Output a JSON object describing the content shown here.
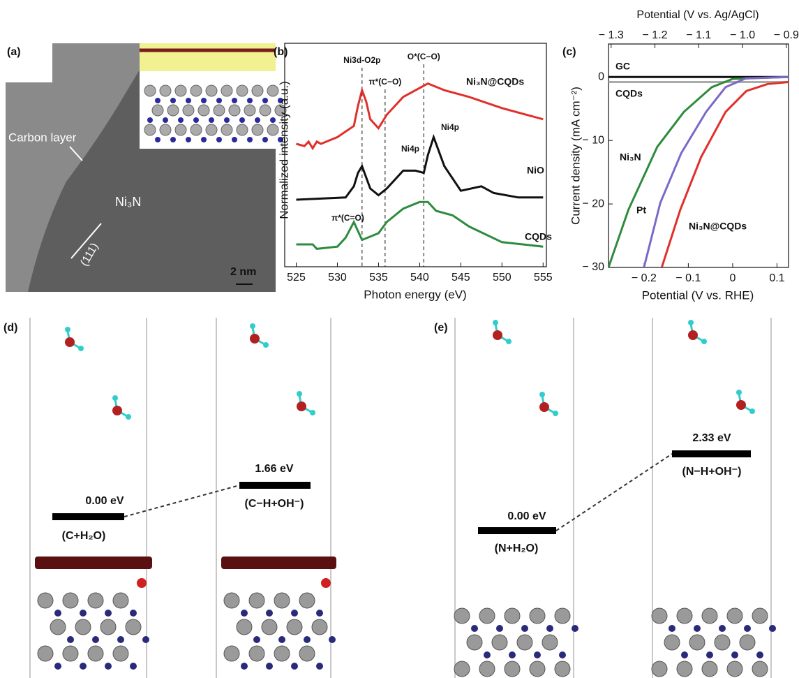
{
  "panels": {
    "a": {
      "label": "(a)",
      "carbon_layer": "Carbon layer",
      "phase": "Ni₃N",
      "plane": "(111)",
      "scale_bar": "2 nm"
    },
    "d": {
      "label": "(d)",
      "level_1": "0.00 eV",
      "state_1": "(C+H₂O)",
      "level_2": "1.66 eV",
      "state_2": "(C−H+OH⁻)"
    },
    "e": {
      "label": "(e)",
      "level_1": "0.00 eV",
      "state_1": "(N+H₂O)",
      "level_2": "2.33 eV",
      "state_2": "(N−H+OH⁻)"
    }
  },
  "chart_data": [
    {
      "type": "line",
      "label": "(b)",
      "xlabel": "Photon energy (eV)",
      "ylabel": "Normalized intensity (a.u.)",
      "xlim": [
        523.6,
        555.4
      ],
      "ylim": [
        0,
        10
      ],
      "xticks": [
        525,
        530,
        535,
        540,
        545,
        550,
        555
      ],
      "series": [
        {
          "name": "Ni₃N@CQDs",
          "color": "#e0302a",
          "x": [
            525,
            526,
            526.5,
            527,
            527.5,
            528,
            530,
            532,
            532.5,
            533,
            533.5,
            534,
            535,
            536,
            538,
            540,
            541,
            543,
            546,
            550,
            555
          ],
          "values": [
            5.5,
            5.4,
            5.6,
            5.3,
            5.6,
            5.5,
            5.8,
            6.3,
            7.2,
            7.9,
            7.4,
            6.6,
            6.2,
            6.8,
            7.6,
            8.0,
            8.2,
            7.9,
            7.6,
            7.1,
            6.6
          ]
        },
        {
          "name": "NiO",
          "color": "#111111",
          "x": [
            525,
            531,
            532,
            532.5,
            533,
            534,
            535,
            536,
            538,
            539.5,
            540.5,
            541,
            541.7,
            543,
            545,
            547.5,
            549,
            552,
            555
          ],
          "values": [
            3.0,
            3.1,
            3.6,
            4.2,
            4.5,
            3.5,
            3.2,
            3.5,
            4.3,
            4.3,
            4.2,
            5.0,
            5.8,
            4.5,
            3.4,
            3.6,
            3.3,
            3.1,
            3.1
          ]
        },
        {
          "name": "CQDs",
          "color": "#2e8b3e",
          "x": [
            525,
            527,
            527.5,
            530,
            531,
            532,
            533,
            535,
            536,
            538,
            540,
            541,
            542,
            544,
            546,
            550,
            555
          ],
          "values": [
            1.0,
            1.0,
            0.8,
            0.9,
            1.3,
            2.0,
            1.2,
            1.5,
            2.0,
            2.6,
            2.9,
            2.9,
            2.5,
            2.3,
            1.8,
            1.1,
            0.9
          ]
        }
      ],
      "annotations": [
        {
          "text": "Ni3d-O2p",
          "x": 533
        },
        {
          "text": "π*(C−O)",
          "x": 535.8
        },
        {
          "text": "O*(C−O)",
          "x": 540.5
        }
      ],
      "labels": [
        "Ni4p",
        "Ni4p",
        "π*(C=O)"
      ]
    },
    {
      "type": "line",
      "label": "(c)",
      "xlabel": "Potential (V vs. RHE)",
      "ylabel": "Current density (mA cm⁻²)",
      "x2label": "Potential (V vs. Ag/AgCl)",
      "xlim": [
        -0.28,
        0.126
      ],
      "x2lim": [
        -1.306,
        -0.895
      ],
      "ylim": [
        -30,
        5.2
      ],
      "xticks": [
        {
          "value": -0.2,
          "label": "− 0.2"
        },
        {
          "value": -0.1,
          "label": "− 0.1"
        },
        0,
        0.1
      ],
      "x2ticks": [
        {
          "value": -1.3,
          "label": "− 1.3"
        },
        {
          "value": -1.2,
          "label": "− 1.2"
        },
        {
          "value": -1.1,
          "label": "− 1.1"
        },
        {
          "value": -1.0,
          "label": "− 1.0"
        },
        {
          "value": -0.9,
          "label": "− 0.9"
        }
      ],
      "yticks": [
        {
          "value": -30,
          "label": "− 30"
        },
        {
          "value": -20,
          "label": "− 20"
        },
        {
          "value": -10,
          "label": "− 10"
        },
        0
      ],
      "series": [
        {
          "name": "GC",
          "color": "#111111",
          "x": [
            -0.28,
            0.126
          ],
          "values": [
            0,
            0
          ]
        },
        {
          "name": "CQDs",
          "color": "#aaaaaa",
          "x": [
            -0.28,
            0.126
          ],
          "values": [
            -0.8,
            -0.8
          ]
        },
        {
          "name": "Ni₃N",
          "color": "#2e8b3e",
          "x": [
            -0.28,
            -0.235,
            -0.17,
            -0.11,
            -0.047,
            0,
            0.126
          ],
          "values": [
            -30,
            -20.9,
            -11,
            -5.5,
            -1.6,
            -0.3,
            0
          ]
        },
        {
          "name": "Pt",
          "color": "#7b68c8",
          "x": [
            -0.2,
            -0.163,
            -0.116,
            -0.06,
            -0.016,
            0.03,
            0.126
          ],
          "values": [
            -30,
            -19.8,
            -12,
            -5.5,
            -1.6,
            -0.2,
            0
          ]
        },
        {
          "name": "Ni₃N@CQDs",
          "color": "#e0302a",
          "x": [
            -0.16,
            -0.118,
            -0.071,
            -0.016,
            0.031,
            0.079,
            0.126
          ],
          "values": [
            -30,
            -20.9,
            -12.6,
            -5.5,
            -2.2,
            -1.1,
            -0.8
          ]
        }
      ]
    }
  ]
}
